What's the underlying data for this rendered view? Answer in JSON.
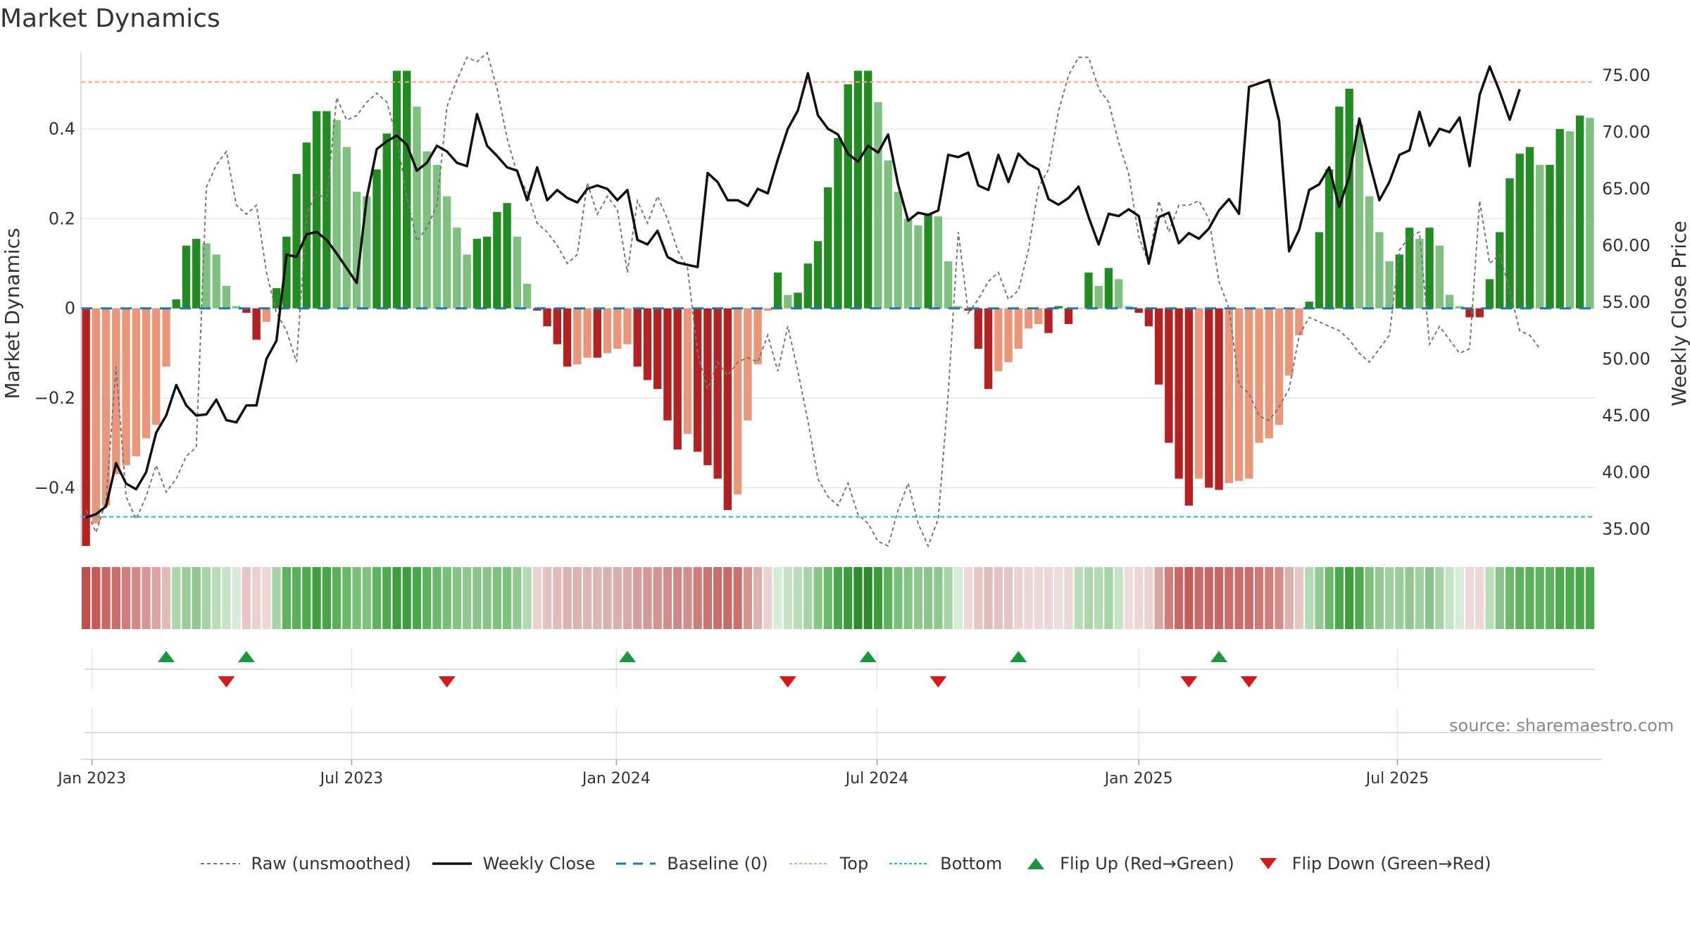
{
  "title": "Market Dynamics",
  "source": "source: sharemaestro.com",
  "colors": {
    "up_strong": "#228B22",
    "up_weak": "#7FBF7F",
    "down_strong": "#B22222",
    "down_weak": "#E9967A",
    "close": "#111111",
    "raw": "#777777",
    "baseline": "#1f77b4",
    "top": "#F4A582",
    "bottom": "#17BECF",
    "flip_up": "#1a9641",
    "flip_down": "#d7191c"
  },
  "legend": [
    {
      "key": "raw",
      "label": "Raw (unsmoothed)"
    },
    {
      "key": "close",
      "label": "Weekly Close"
    },
    {
      "key": "baseline",
      "label": "Baseline (0)"
    },
    {
      "key": "top",
      "label": "Top"
    },
    {
      "key": "bottom",
      "label": "Bottom"
    },
    {
      "key": "flip_up",
      "label": "Flip Up (Red→Green)"
    },
    {
      "key": "flip_down",
      "label": "Flip Down (Green→Red)"
    }
  ],
  "chart_data": {
    "type": "bar",
    "title": "Market Dynamics",
    "ylabel_left": "Market Dynamics",
    "ylabel_right": "Weekly Close Price",
    "ylim_left": [
      -0.53,
      0.57
    ],
    "ylim_right": [
      33.5,
      77.0
    ],
    "yticks_left": [
      -0.4,
      -0.2,
      0,
      0.2,
      0.4
    ],
    "ytick_labels_left": [
      "−0.4",
      "−0.2",
      "0",
      "0.2",
      "0.4"
    ],
    "yticks_right": [
      35,
      40,
      45,
      50,
      55,
      60,
      65,
      70,
      75
    ],
    "ytick_labels_right": [
      "35.00",
      "40.00",
      "45.00",
      "50.00",
      "55.00",
      "60.00",
      "65.00",
      "70.00",
      "75.00"
    ],
    "x_start_week": "2022-12-26",
    "x_ticks": [
      {
        "label": "Jan 2023",
        "week": 1.1
      },
      {
        "label": "Jul 2023",
        "week": 27.0
      },
      {
        "label": "Jan 2024",
        "week": 53.4
      },
      {
        "label": "Jul 2024",
        "week": 79.4
      },
      {
        "label": "Jan 2025",
        "week": 105.5
      },
      {
        "label": "Jul 2025",
        "week": 131.3
      }
    ],
    "top_level": 0.505,
    "bottom_level": -0.465,
    "dynamics": [
      -0.53,
      -0.48,
      -0.44,
      -0.37,
      -0.35,
      -0.33,
      -0.29,
      -0.26,
      -0.13,
      0.02,
      0.14,
      0.155,
      0.145,
      0.12,
      0.05,
      0.005,
      -0.01,
      -0.07,
      -0.03,
      0.045,
      0.16,
      0.3,
      0.37,
      0.44,
      0.44,
      0.42,
      0.36,
      0.26,
      0.25,
      0.31,
      0.39,
      0.53,
      0.53,
      0.45,
      0.35,
      0.32,
      0.25,
      0.18,
      0.12,
      0.155,
      0.16,
      0.215,
      0.235,
      0.16,
      0.055,
      -0.005,
      -0.04,
      -0.08,
      -0.13,
      -0.125,
      -0.11,
      -0.11,
      -0.1,
      -0.09,
      -0.08,
      -0.13,
      -0.16,
      -0.18,
      -0.25,
      -0.315,
      -0.28,
      -0.32,
      -0.35,
      -0.38,
      -0.45,
      -0.415,
      -0.25,
      -0.125,
      -0.005,
      0.08,
      0.03,
      0.035,
      0.1,
      0.15,
      0.27,
      0.38,
      0.5,
      0.53,
      0.53,
      0.46,
      0.33,
      0.26,
      0.2,
      0.185,
      0.21,
      0.205,
      0.105,
      0.005,
      -0.005,
      -0.09,
      -0.18,
      -0.14,
      -0.12,
      -0.09,
      -0.045,
      -0.035,
      -0.055,
      0.005,
      -0.035,
      0.0,
      0.08,
      0.05,
      0.09,
      0.065,
      0.005,
      -0.01,
      -0.04,
      -0.17,
      -0.3,
      -0.38,
      -0.44,
      -0.38,
      -0.4,
      -0.405,
      -0.39,
      -0.385,
      -0.38,
      -0.3,
      -0.29,
      -0.26,
      -0.15,
      -0.06,
      0.015,
      0.17,
      0.31,
      0.45,
      0.49,
      0.41,
      0.25,
      0.17,
      0.105,
      0.12,
      0.18,
      0.155,
      0.18,
      0.14,
      0.03,
      0.005,
      -0.02,
      -0.02,
      0.065,
      0.17,
      0.29,
      0.345,
      0.36,
      0.32,
      0.32,
      0.4,
      0.395,
      0.43,
      0.425
    ],
    "weekly_close": [
      36.0,
      36.3,
      37.0,
      40.8,
      39.0,
      38.5,
      40.0,
      43.5,
      45.0,
      47.7,
      45.9,
      45.0,
      45.1,
      46.4,
      44.6,
      44.4,
      45.9,
      45.9,
      50.0,
      51.6,
      59.2,
      59.0,
      61.0,
      61.2,
      60.5,
      59.3,
      58.0,
      56.7,
      64.2,
      68.5,
      69.2,
      69.7,
      68.9,
      66.6,
      67.3,
      68.8,
      68.3,
      67.3,
      67.0,
      71.6,
      68.8,
      67.9,
      66.9,
      66.6,
      64.0,
      66.9,
      64.0,
      64.9,
      64.2,
      63.8,
      65.0,
      65.3,
      65.0,
      64.0,
      64.9,
      60.5,
      60.1,
      61.3,
      59.0,
      58.5,
      58.3,
      58.1,
      66.4,
      65.6,
      64.0,
      64.0,
      63.5,
      65.0,
      64.6,
      67.6,
      70.3,
      71.9,
      75.2,
      71.5,
      70.3,
      69.8,
      68.1,
      67.4,
      68.8,
      68.2,
      69.8,
      65.4,
      62.2,
      62.9,
      62.7,
      63.1,
      68.0,
      67.8,
      68.2,
      65.3,
      64.9,
      68.0,
      65.6,
      68.1,
      67.2,
      66.7,
      64.1,
      63.6,
      64.2,
      65.2,
      62.5,
      60.1,
      62.8,
      62.6,
      63.2,
      62.6,
      58.4,
      62.5,
      62.9,
      60.2,
      61.1,
      60.6,
      61.5,
      63.1,
      64.1,
      62.8,
      74.0,
      74.3,
      74.6,
      71.0,
      59.5,
      61.4,
      64.9,
      65.4,
      66.9,
      63.4,
      66.1,
      71.2,
      67.4,
      64.0,
      65.6,
      68.0,
      68.4,
      71.8,
      68.8,
      70.3,
      70.0,
      71.3,
      67.0,
      73.3,
      75.8,
      73.6,
      71.1,
      73.8
    ],
    "raw": [
      -0.45,
      -0.5,
      -0.43,
      -0.13,
      -0.42,
      -0.47,
      -0.42,
      -0.35,
      -0.41,
      -0.38,
      -0.33,
      -0.31,
      0.27,
      0.32,
      0.35,
      0.23,
      0.21,
      0.23,
      0.08,
      -0.01,
      -0.05,
      -0.12,
      0.21,
      0.26,
      0.24,
      0.47,
      0.42,
      0.43,
      0.46,
      0.48,
      0.46,
      0.38,
      0.25,
      0.15,
      0.18,
      0.23,
      0.45,
      0.51,
      0.56,
      0.55,
      0.57,
      0.49,
      0.38,
      0.3,
      0.26,
      0.19,
      0.17,
      0.14,
      0.1,
      0.12,
      0.28,
      0.21,
      0.25,
      0.22,
      0.08,
      0.24,
      0.19,
      0.25,
      0.2,
      0.13,
      0.09,
      -0.1,
      -0.18,
      -0.12,
      -0.15,
      -0.12,
      -0.11,
      -0.12,
      -0.06,
      -0.14,
      -0.04,
      -0.14,
      -0.25,
      -0.38,
      -0.42,
      -0.44,
      -0.39,
      -0.46,
      -0.48,
      -0.52,
      -0.53,
      -0.45,
      -0.39,
      -0.48,
      -0.53,
      -0.47,
      -0.19,
      0.17,
      -0.01,
      0.02,
      0.06,
      0.08,
      0.02,
      0.04,
      0.13,
      0.27,
      0.31,
      0.44,
      0.52,
      0.56,
      0.56,
      0.49,
      0.46,
      0.37,
      0.3,
      0.16,
      0.1,
      0.24,
      0.17,
      0.23,
      0.23,
      0.24,
      0.2,
      0.06,
      0.0,
      -0.17,
      -0.19,
      -0.24,
      -0.25,
      -0.22,
      -0.18,
      -0.06,
      -0.02,
      -0.03,
      -0.04,
      -0.05,
      -0.07,
      -0.1,
      -0.12,
      -0.09,
      -0.06,
      0.13,
      0.16,
      0.17,
      -0.08,
      -0.04,
      -0.07,
      -0.1,
      -0.09,
      0.24,
      0.1,
      0.12,
      0.04,
      -0.05,
      -0.06,
      -0.09
    ],
    "flip_up_weeks": [
      8.5,
      16.5,
      54.5,
      78.5,
      93.5,
      113.5
    ],
    "flip_down_weeks": [
      14.5,
      36.5,
      70.5,
      85.5,
      110.5,
      116.5
    ],
    "band_colors": [
      "#c0504d",
      "#c65a57",
      "#c86866",
      "#cc6d6b",
      "#d07d7b",
      "#d48886",
      "#d69794",
      "#d9a4a1",
      "#e0bbb9",
      "#add6ad",
      "#9ccc9c",
      "#90c690",
      "#a6d4a6",
      "#b9ddb9",
      "#c6e3c6",
      "#d8ebd8",
      "#e4c8c6",
      "#ebd0ce",
      "#ecd6d4",
      "#a6d4a6",
      "#5fb35f",
      "#59b059",
      "#4da94d",
      "#3f9f3f",
      "#48a548",
      "#59b059",
      "#6ab86a",
      "#78bf78",
      "#7ec27e",
      "#5fb35f",
      "#4fa94f",
      "#3e9d3e",
      "#3e9d3e",
      "#4ba74b",
      "#5fb35f",
      "#6ab86a",
      "#78bf78",
      "#84c584",
      "#90c690",
      "#8ac48a",
      "#8ac48a",
      "#7ec27e",
      "#7ec27e",
      "#94c994",
      "#b4dab4",
      "#e8d3d1",
      "#e3c3c1",
      "#dfbcb9",
      "#dcb2af",
      "#dcb2af",
      "#dcb6b3",
      "#dcb6b3",
      "#dab1ae",
      "#d9aeab",
      "#d8aaa7",
      "#d69d9a",
      "#d49895",
      "#d29592",
      "#d08f8c",
      "#ce8986",
      "#d08f8c",
      "#cd7e7b",
      "#cb7472",
      "#c96e6c",
      "#c76a68",
      "#c87270",
      "#d49591",
      "#dcb2af",
      "#e8d3d1",
      "#d5ecd5",
      "#c6e3c6",
      "#b9ddb9",
      "#a6d4a6",
      "#8ac48a",
      "#6cb86c",
      "#4ba74b",
      "#3a9b3a",
      "#2e8b2e",
      "#2e8b2e",
      "#3a9b3a",
      "#5fb35f",
      "#78bf78",
      "#84c584",
      "#90c690",
      "#8ac48a",
      "#90c690",
      "#a6d4a6",
      "#d5ecd5",
      "#ecd8d6",
      "#e4c6c4",
      "#e0bcba",
      "#e3c3c1",
      "#e4c6c4",
      "#e8d3d1",
      "#ebd8d6",
      "#ecd8d6",
      "#ebd8d6",
      "#ecdcda",
      "#ebd8d6",
      "#b9ddb9",
      "#add6ad",
      "#b4dab4",
      "#a6d4a6",
      "#c6e3c6",
      "#ecdcda",
      "#ebd8d6",
      "#e8d3d1",
      "#d8a6a3",
      "#cd7e7b",
      "#c86866",
      "#c45e5b",
      "#c76a68",
      "#c86866",
      "#c86866",
      "#c96e6c",
      "#c96e6c",
      "#ca6e6c",
      "#cf7a77",
      "#d17f7c",
      "#d58d8a",
      "#dcb2af",
      "#e4c6c4",
      "#b4dab4",
      "#94c994",
      "#6cb86c",
      "#4ba74b",
      "#3f9f3f",
      "#4fa94f",
      "#7ec27e",
      "#94c994",
      "#a0cfa0",
      "#9ccc9c",
      "#90c690",
      "#a0cfa0",
      "#8ac48a",
      "#a6d4a6",
      "#c6e3c6",
      "#d5ecd5",
      "#ecd8d6",
      "#ecd8d6",
      "#b9ddb9",
      "#8ac48a",
      "#6cb86c",
      "#5fb35f",
      "#59b059",
      "#5fb35f",
      "#5fb35f",
      "#4fa94f",
      "#4fa94f",
      "#4ba74b",
      "#4ba74b"
    ]
  }
}
